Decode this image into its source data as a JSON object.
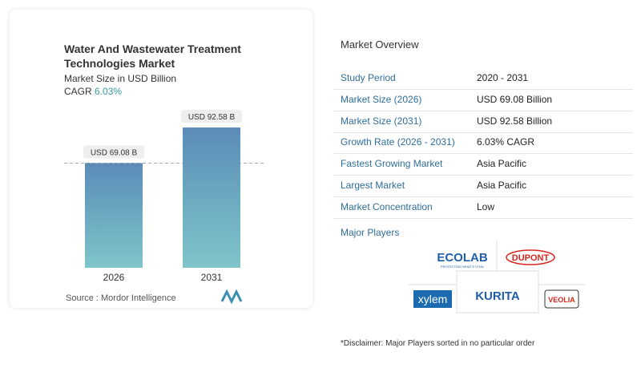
{
  "chart_data": {
    "type": "bar",
    "title": "Water And Wastewater Treatment Technologies Market",
    "subtitle": "Market Size in USD Billion",
    "cagr_label": "CAGR",
    "cagr_value": "6.03%",
    "categories": [
      "2026",
      "2031"
    ],
    "values": [
      69.08,
      92.58
    ],
    "value_labels": [
      "USD 69.08 B",
      "USD 92.58 B"
    ],
    "ylim": [
      0,
      100
    ],
    "source": "Source :  Mordor Intelligence"
  },
  "overview": {
    "title": "Market Overview",
    "rows": [
      [
        "Study Period",
        "2020 - 2031"
      ],
      [
        "Market Size (2026)",
        "USD 69.08 Billion"
      ],
      [
        "Market Size (2031)",
        "USD 92.58 Billion"
      ],
      [
        "Growth Rate (2026 - 2031)",
        "6.03% CAGR"
      ],
      [
        "Fastest Growing Market",
        "Asia Pacific"
      ],
      [
        "Largest Market",
        "Asia Pacific"
      ],
      [
        "Market Concentration",
        "Low"
      ]
    ]
  },
  "players": {
    "title": "Major Players",
    "ecolab": "ECOLAB",
    "ecolab_tagline": "PROTECTING WHAT'S VITAL",
    "dupont": "DUPONT",
    "xylem": "xylem",
    "kurita": "KURITA",
    "veolia": "VEOLIA"
  },
  "disclaimer": "*Disclaimer: Major Players sorted in no particular order"
}
